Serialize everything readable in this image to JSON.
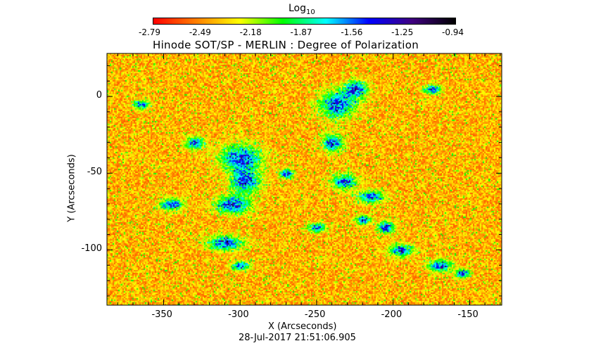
{
  "chart_data": {
    "type": "heatmap",
    "title": "Hinode SOT/SP - MERLIN : Degree of Polarization",
    "xlabel": "X (Arcseconds)",
    "ylabel": "Y (Arcseconds)",
    "xlim": [
      -387,
      -129
    ],
    "ylim": [
      -136,
      28
    ],
    "xticks": [
      -350,
      -300,
      -250,
      -200,
      -150
    ],
    "yticks": [
      0,
      -50,
      -100
    ],
    "colorbar": {
      "label": "Log",
      "label_subscript": "10",
      "range": [
        -2.79,
        -0.94
      ],
      "ticks": [
        "-2.79",
        "-2.49",
        "-2.18",
        "-1.87",
        "-1.56",
        "-1.25",
        "-0.94"
      ],
      "colormap": [
        "#ff0000",
        "#ff8000",
        "#ffff00",
        "#00ff00",
        "#00ffff",
        "#0000ff",
        "#400080",
        "#000000"
      ]
    },
    "timestamp": "28-Jul-2017 21:51:06.905"
  }
}
